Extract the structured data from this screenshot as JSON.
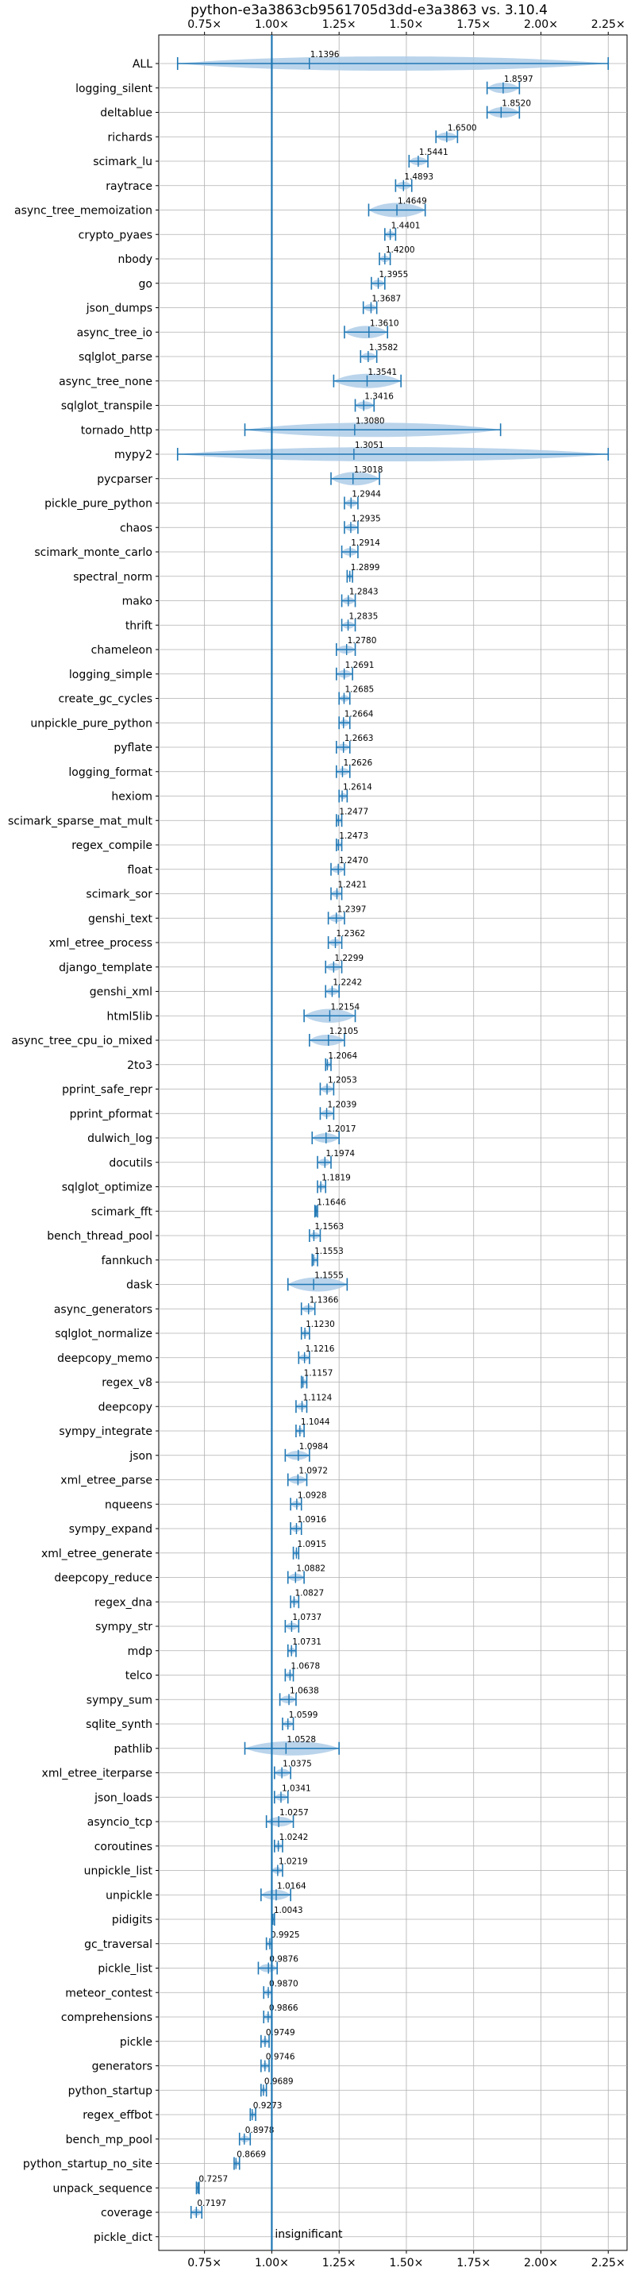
{
  "chart_data": {
    "type": "violin",
    "title": "python-e3a3863cb9561705d3dd-e3a3863 vs. 3.10.4",
    "xlim": [
      0.58,
      2.32
    ],
    "xticks": [
      0.75,
      1.0,
      1.25,
      1.5,
      1.75,
      2.0,
      2.25
    ],
    "xtick_labels": [
      "0.75×",
      "1.00×",
      "1.25×",
      "1.50×",
      "1.75×",
      "2.00×",
      "2.25×"
    ],
    "grid": true,
    "reference_line": {
      "x": 1.0,
      "label": "insignificant"
    },
    "accent_color": "#1f77b4",
    "violin_color": "#aecde8",
    "rows": [
      {
        "name": "ALL",
        "value": 1.1396,
        "min": 0.65,
        "max": 2.25
      },
      {
        "name": "logging_silent",
        "value": 1.8597,
        "min": 1.8,
        "max": 1.92
      },
      {
        "name": "deltablue",
        "value": 1.852,
        "min": 1.8,
        "max": 1.92
      },
      {
        "name": "richards",
        "value": 1.65,
        "min": 1.61,
        "max": 1.69
      },
      {
        "name": "scimark_lu",
        "value": 1.5441,
        "min": 1.51,
        "max": 1.58
      },
      {
        "name": "raytrace",
        "value": 1.4893,
        "min": 1.46,
        "max": 1.52
      },
      {
        "name": "async_tree_memoization",
        "value": 1.4649,
        "min": 1.36,
        "max": 1.57
      },
      {
        "name": "crypto_pyaes",
        "value": 1.4401,
        "min": 1.42,
        "max": 1.46
      },
      {
        "name": "nbody",
        "value": 1.42,
        "min": 1.4,
        "max": 1.44
      },
      {
        "name": "go",
        "value": 1.3955,
        "min": 1.37,
        "max": 1.42
      },
      {
        "name": "json_dumps",
        "value": 1.3687,
        "min": 1.34,
        "max": 1.39
      },
      {
        "name": "async_tree_io",
        "value": 1.361,
        "min": 1.27,
        "max": 1.43
      },
      {
        "name": "sqlglot_parse",
        "value": 1.3582,
        "min": 1.33,
        "max": 1.39
      },
      {
        "name": "async_tree_none",
        "value": 1.3541,
        "min": 1.23,
        "max": 1.48
      },
      {
        "name": "sqlglot_transpile",
        "value": 1.3416,
        "min": 1.31,
        "max": 1.38
      },
      {
        "name": "tornado_http",
        "value": 1.308,
        "min": 0.9,
        "max": 1.85
      },
      {
        "name": "mypy2",
        "value": 1.3051,
        "min": 0.65,
        "max": 2.25
      },
      {
        "name": "pycparser",
        "value": 1.3018,
        "min": 1.22,
        "max": 1.4
      },
      {
        "name": "pickle_pure_python",
        "value": 1.2944,
        "min": 1.27,
        "max": 1.32
      },
      {
        "name": "chaos",
        "value": 1.2935,
        "min": 1.27,
        "max": 1.32
      },
      {
        "name": "scimark_monte_carlo",
        "value": 1.2914,
        "min": 1.26,
        "max": 1.32
      },
      {
        "name": "spectral_norm",
        "value": 1.2899,
        "min": 1.28,
        "max": 1.3
      },
      {
        "name": "mako",
        "value": 1.2843,
        "min": 1.26,
        "max": 1.31
      },
      {
        "name": "thrift",
        "value": 1.2835,
        "min": 1.26,
        "max": 1.31
      },
      {
        "name": "chameleon",
        "value": 1.278,
        "min": 1.24,
        "max": 1.31
      },
      {
        "name": "logging_simple",
        "value": 1.2691,
        "min": 1.24,
        "max": 1.3
      },
      {
        "name": "create_gc_cycles",
        "value": 1.2685,
        "min": 1.25,
        "max": 1.29
      },
      {
        "name": "unpickle_pure_python",
        "value": 1.2664,
        "min": 1.25,
        "max": 1.29
      },
      {
        "name": "pyflate",
        "value": 1.2663,
        "min": 1.24,
        "max": 1.29
      },
      {
        "name": "logging_format",
        "value": 1.2626,
        "min": 1.24,
        "max": 1.29
      },
      {
        "name": "hexiom",
        "value": 1.2614,
        "min": 1.25,
        "max": 1.28
      },
      {
        "name": "scimark_sparse_mat_mult",
        "value": 1.2477,
        "min": 1.24,
        "max": 1.26
      },
      {
        "name": "regex_compile",
        "value": 1.2473,
        "min": 1.24,
        "max": 1.26
      },
      {
        "name": "float",
        "value": 1.247,
        "min": 1.22,
        "max": 1.27
      },
      {
        "name": "scimark_sor",
        "value": 1.2421,
        "min": 1.22,
        "max": 1.26
      },
      {
        "name": "genshi_text",
        "value": 1.2397,
        "min": 1.21,
        "max": 1.27
      },
      {
        "name": "xml_etree_process",
        "value": 1.2362,
        "min": 1.21,
        "max": 1.26
      },
      {
        "name": "django_template",
        "value": 1.2299,
        "min": 1.2,
        "max": 1.26
      },
      {
        "name": "genshi_xml",
        "value": 1.2242,
        "min": 1.2,
        "max": 1.25
      },
      {
        "name": "html5lib",
        "value": 1.2154,
        "min": 1.12,
        "max": 1.31
      },
      {
        "name": "async_tree_cpu_io_mixed",
        "value": 1.2105,
        "min": 1.14,
        "max": 1.27
      },
      {
        "name": "2to3",
        "value": 1.2064,
        "min": 1.2,
        "max": 1.22
      },
      {
        "name": "pprint_safe_repr",
        "value": 1.2053,
        "min": 1.18,
        "max": 1.23
      },
      {
        "name": "pprint_pformat",
        "value": 1.2039,
        "min": 1.18,
        "max": 1.23
      },
      {
        "name": "dulwich_log",
        "value": 1.2017,
        "min": 1.15,
        "max": 1.25
      },
      {
        "name": "docutils",
        "value": 1.1974,
        "min": 1.17,
        "max": 1.22
      },
      {
        "name": "sqlglot_optimize",
        "value": 1.1819,
        "min": 1.17,
        "max": 1.2
      },
      {
        "name": "scimark_fft",
        "value": 1.1646,
        "min": 1.16,
        "max": 1.17
      },
      {
        "name": "bench_thread_pool",
        "value": 1.1563,
        "min": 1.14,
        "max": 1.18
      },
      {
        "name": "fannkuch",
        "value": 1.1553,
        "min": 1.15,
        "max": 1.17
      },
      {
        "name": "dask",
        "value": 1.1555,
        "min": 1.06,
        "max": 1.28
      },
      {
        "name": "async_generators",
        "value": 1.1366,
        "min": 1.11,
        "max": 1.16
      },
      {
        "name": "sqlglot_normalize",
        "value": 1.123,
        "min": 1.11,
        "max": 1.14
      },
      {
        "name": "deepcopy_memo",
        "value": 1.1216,
        "min": 1.1,
        "max": 1.14
      },
      {
        "name": "regex_v8",
        "value": 1.1157,
        "min": 1.11,
        "max": 1.13
      },
      {
        "name": "deepcopy",
        "value": 1.1124,
        "min": 1.09,
        "max": 1.13
      },
      {
        "name": "sympy_integrate",
        "value": 1.1044,
        "min": 1.09,
        "max": 1.12
      },
      {
        "name": "json",
        "value": 1.0984,
        "min": 1.05,
        "max": 1.14
      },
      {
        "name": "xml_etree_parse",
        "value": 1.0972,
        "min": 1.06,
        "max": 1.13
      },
      {
        "name": "nqueens",
        "value": 1.0928,
        "min": 1.07,
        "max": 1.11
      },
      {
        "name": "sympy_expand",
        "value": 1.0916,
        "min": 1.07,
        "max": 1.11
      },
      {
        "name": "xml_etree_generate",
        "value": 1.0915,
        "min": 1.08,
        "max": 1.1
      },
      {
        "name": "deepcopy_reduce",
        "value": 1.0882,
        "min": 1.06,
        "max": 1.12
      },
      {
        "name": "regex_dna",
        "value": 1.0827,
        "min": 1.07,
        "max": 1.1
      },
      {
        "name": "sympy_str",
        "value": 1.0737,
        "min": 1.05,
        "max": 1.1
      },
      {
        "name": "mdp",
        "value": 1.0731,
        "min": 1.06,
        "max": 1.09
      },
      {
        "name": "telco",
        "value": 1.0678,
        "min": 1.05,
        "max": 1.08
      },
      {
        "name": "sympy_sum",
        "value": 1.0638,
        "min": 1.03,
        "max": 1.09
      },
      {
        "name": "sqlite_synth",
        "value": 1.0599,
        "min": 1.04,
        "max": 1.08
      },
      {
        "name": "pathlib",
        "value": 1.0528,
        "min": 0.9,
        "max": 1.25
      },
      {
        "name": "xml_etree_iterparse",
        "value": 1.0375,
        "min": 1.01,
        "max": 1.07
      },
      {
        "name": "json_loads",
        "value": 1.0341,
        "min": 1.01,
        "max": 1.06
      },
      {
        "name": "asyncio_tcp",
        "value": 1.0257,
        "min": 0.98,
        "max": 1.08
      },
      {
        "name": "coroutines",
        "value": 1.0242,
        "min": 1.01,
        "max": 1.04
      },
      {
        "name": "unpickle_list",
        "value": 1.0219,
        "min": 1.0,
        "max": 1.04
      },
      {
        "name": "unpickle",
        "value": 1.0164,
        "min": 0.96,
        "max": 1.07
      },
      {
        "name": "pidigits",
        "value": 1.0043,
        "min": 1.0,
        "max": 1.01
      },
      {
        "name": "gc_traversal",
        "value": 0.9925,
        "min": 0.98,
        "max": 1.0
      },
      {
        "name": "pickle_list",
        "value": 0.9876,
        "min": 0.95,
        "max": 1.02
      },
      {
        "name": "meteor_contest",
        "value": 0.987,
        "min": 0.97,
        "max": 1.0
      },
      {
        "name": "comprehensions",
        "value": 0.9866,
        "min": 0.97,
        "max": 1.0
      },
      {
        "name": "pickle",
        "value": 0.9749,
        "min": 0.96,
        "max": 0.99
      },
      {
        "name": "generators",
        "value": 0.9746,
        "min": 0.96,
        "max": 0.99
      },
      {
        "name": "python_startup",
        "value": 0.9689,
        "min": 0.96,
        "max": 0.98
      },
      {
        "name": "regex_effbot",
        "value": 0.9273,
        "min": 0.92,
        "max": 0.94
      },
      {
        "name": "bench_mp_pool",
        "value": 0.8978,
        "min": 0.88,
        "max": 0.92
      },
      {
        "name": "python_startup_no_site",
        "value": 0.8669,
        "min": 0.86,
        "max": 0.88
      },
      {
        "name": "unpack_sequence",
        "value": 0.7257,
        "min": 0.72,
        "max": 0.73
      },
      {
        "name": "coverage",
        "value": 0.7197,
        "min": 0.7,
        "max": 0.74
      },
      {
        "name": "pickle_dict",
        "value": null,
        "min": null,
        "max": null
      }
    ]
  }
}
